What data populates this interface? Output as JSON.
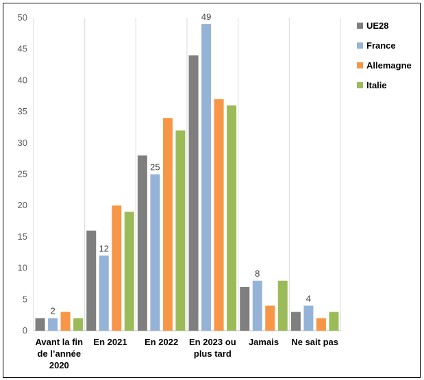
{
  "chart_data": {
    "type": "bar",
    "categories": [
      [
        "Avant la fin",
        "de l’année",
        "2020"
      ],
      [
        "En 2021"
      ],
      [
        "En 2022"
      ],
      [
        "En 2023 ou",
        "plus tard"
      ],
      [
        "Jamais"
      ],
      [
        "Ne sait pas"
      ]
    ],
    "series": [
      {
        "name": "UE28",
        "color": "#7f7f7f",
        "values": [
          2,
          16,
          28,
          44,
          7,
          3
        ]
      },
      {
        "name": "France",
        "color": "#95b3d7",
        "values": [
          2,
          12,
          25,
          49,
          8,
          4
        ]
      },
      {
        "name": "Allemagne",
        "color": "#f79646",
        "values": [
          3,
          20,
          34,
          37,
          4,
          2
        ]
      },
      {
        "name": "Italie",
        "color": "#9bbb59",
        "values": [
          2,
          19,
          32,
          36,
          8,
          3
        ]
      }
    ],
    "data_labels": {
      "series": "France",
      "values": [
        "2",
        "12",
        "25",
        "49",
        "8",
        "4"
      ]
    },
    "ylim": [
      0,
      50
    ],
    "yticks": [
      0,
      5,
      10,
      15,
      20,
      25,
      30,
      35,
      40,
      45,
      50
    ],
    "grid": "vertical category separators",
    "legend_position": "right",
    "title": "",
    "xlabel": "",
    "ylabel": ""
  }
}
